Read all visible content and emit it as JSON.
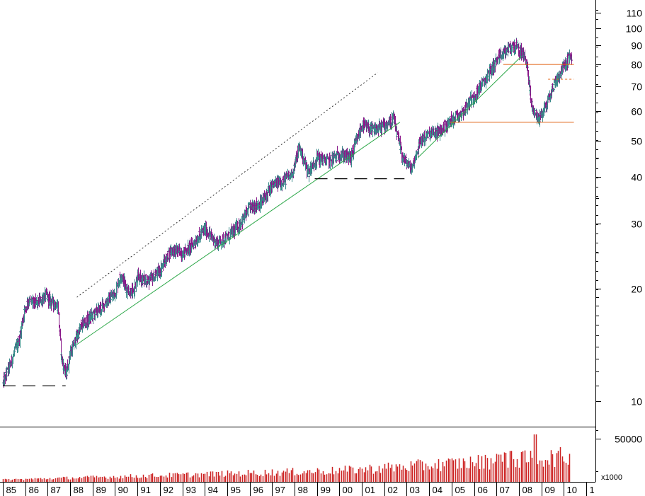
{
  "chart_data": {
    "type": "ohlc-bar",
    "scale": "log",
    "title": "",
    "price_ticks": [
      10,
      20,
      30,
      40,
      50,
      60,
      70,
      80,
      90,
      100,
      110
    ],
    "price_minor_ticks": [
      11,
      12,
      13,
      14,
      15,
      16,
      17,
      18,
      19,
      25,
      35,
      45
    ],
    "volume_ticks": [
      50000
    ],
    "volume_unit": "x1000",
    "x_labels": [
      "85",
      "86",
      "87",
      "88",
      "89",
      "90",
      "91",
      "92",
      "93",
      "94",
      "95",
      "96",
      "97",
      "98",
      "99",
      "00",
      "01",
      "02",
      "03",
      "04",
      "05",
      "06",
      "07",
      "08",
      "09",
      "10",
      "1"
    ],
    "price_anchors": [
      {
        "t": 1985.0,
        "v": 11.2
      },
      {
        "t": 1985.3,
        "v": 12.5
      },
      {
        "t": 1985.7,
        "v": 14.5
      },
      {
        "t": 1985.95,
        "v": 17.5
      },
      {
        "t": 1986.1,
        "v": 18.6
      },
      {
        "t": 1986.5,
        "v": 18.3
      },
      {
        "t": 1986.9,
        "v": 19.2
      },
      {
        "t": 1987.2,
        "v": 18.4
      },
      {
        "t": 1987.45,
        "v": 18.0
      },
      {
        "t": 1987.6,
        "v": 13.0
      },
      {
        "t": 1987.8,
        "v": 11.8
      },
      {
        "t": 1988.0,
        "v": 13.5
      },
      {
        "t": 1988.5,
        "v": 16.0
      },
      {
        "t": 1989.0,
        "v": 17.0
      },
      {
        "t": 1989.5,
        "v": 18.2
      },
      {
        "t": 1990.0,
        "v": 19.5
      },
      {
        "t": 1990.25,
        "v": 22.0
      },
      {
        "t": 1990.5,
        "v": 20.0
      },
      {
        "t": 1990.8,
        "v": 19.5
      },
      {
        "t": 1991.0,
        "v": 21.5
      },
      {
        "t": 1991.5,
        "v": 21.0
      },
      {
        "t": 1992.0,
        "v": 22.5
      },
      {
        "t": 1992.5,
        "v": 25.5
      },
      {
        "t": 1993.0,
        "v": 25.0
      },
      {
        "t": 1993.5,
        "v": 26.5
      },
      {
        "t": 1994.0,
        "v": 29.0
      },
      {
        "t": 1994.5,
        "v": 26.5
      },
      {
        "t": 1995.0,
        "v": 27.5
      },
      {
        "t": 1995.5,
        "v": 29.5
      },
      {
        "t": 1996.0,
        "v": 33.0
      },
      {
        "t": 1996.5,
        "v": 34.0
      },
      {
        "t": 1997.0,
        "v": 38.0
      },
      {
        "t": 1997.5,
        "v": 39.0
      },
      {
        "t": 1997.9,
        "v": 41.0
      },
      {
        "t": 1998.2,
        "v": 48.0
      },
      {
        "t": 1998.6,
        "v": 41.0
      },
      {
        "t": 1999.0,
        "v": 45.0
      },
      {
        "t": 1999.5,
        "v": 44.0
      },
      {
        "t": 2000.0,
        "v": 46.0
      },
      {
        "t": 2000.5,
        "v": 45.0
      },
      {
        "t": 2001.0,
        "v": 55.0
      },
      {
        "t": 2001.5,
        "v": 53.0
      },
      {
        "t": 2002.0,
        "v": 55.0
      },
      {
        "t": 2002.4,
        "v": 57.0
      },
      {
        "t": 2002.8,
        "v": 45.0
      },
      {
        "t": 2003.2,
        "v": 42.0
      },
      {
        "t": 2003.6,
        "v": 50.0
      },
      {
        "t": 2004.0,
        "v": 52.0
      },
      {
        "t": 2004.5,
        "v": 53.0
      },
      {
        "t": 2005.0,
        "v": 57.0
      },
      {
        "t": 2005.5,
        "v": 60.0
      },
      {
        "t": 2006.0,
        "v": 66.0
      },
      {
        "t": 2006.5,
        "v": 73.0
      },
      {
        "t": 2007.0,
        "v": 82.0
      },
      {
        "t": 2007.5,
        "v": 88.0
      },
      {
        "t": 2007.8,
        "v": 90.0
      },
      {
        "t": 2008.3,
        "v": 83.0
      },
      {
        "t": 2008.55,
        "v": 62.0
      },
      {
        "t": 2008.85,
        "v": 57.0
      },
      {
        "t": 2009.2,
        "v": 62.0
      },
      {
        "t": 2009.6,
        "v": 72.0
      },
      {
        "t": 2010.0,
        "v": 79.0
      },
      {
        "t": 2010.25,
        "v": 84.0
      }
    ],
    "trend_lines": [
      {
        "name": "uptrend-support-1",
        "style": "solid",
        "color": "#2ea84a",
        "from": {
          "t": 1988.3,
          "v": 14.2
        },
        "to": {
          "t": 2002.7,
          "v": 56.0
        }
      },
      {
        "name": "upper-channel",
        "style": "dotted",
        "color": "#333333",
        "from": {
          "t": 1988.3,
          "v": 19.0
        },
        "to": {
          "t": 2001.7,
          "v": 76.0
        }
      },
      {
        "name": "uptrend-support-2",
        "style": "solid",
        "color": "#2ea84a",
        "from": {
          "t": 2003.5,
          "v": 45.0
        },
        "to": {
          "t": 2008.1,
          "v": 84.0
        }
      }
    ],
    "horizontal_lines": [
      {
        "name": "support-1987",
        "style": "dashed",
        "color": "#000000",
        "value": 11.0,
        "t0": 1985.0,
        "t1": 1987.8
      },
      {
        "name": "support-2002",
        "style": "dashed",
        "color": "#000000",
        "value": 39.5,
        "t0": 1998.9,
        "t1": 2002.9
      },
      {
        "name": "resistance-80",
        "style": "solid",
        "color": "#e06010",
        "value": 80.0,
        "t0": 2007.3,
        "t1": 2010.45
      },
      {
        "name": "support-56",
        "style": "solid",
        "color": "#e06010",
        "value": 56.0,
        "t0": 2004.9,
        "t1": 2010.45
      },
      {
        "name": "level-73",
        "style": "dashed",
        "color": "#e06010",
        "value": 73.0,
        "t0": 2009.3,
        "t1": 2010.45
      }
    ],
    "colors": {
      "bar_up": "#3a8a8a",
      "bar_down": "#8a1a8a",
      "volume": "#cc2222",
      "trend_green": "#2ea84a",
      "level_orange": "#e06010",
      "axis": "#000000"
    }
  }
}
